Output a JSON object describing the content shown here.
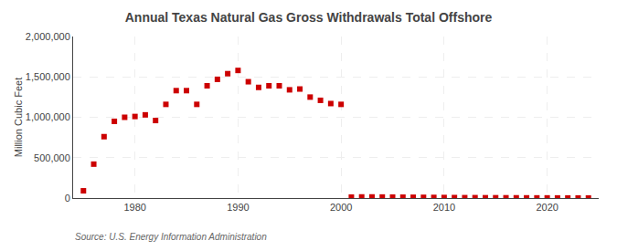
{
  "chart_data": {
    "type": "scatter",
    "title": "Annual Texas Natural Gas Gross Withdrawals Total Offshore",
    "ylabel": "Million Cubic Feet",
    "annotations": [
      "Source: U.S. Energy Information Administration"
    ],
    "color": "#cc0000",
    "marker": "square",
    "grid": true,
    "x": [
      1975,
      1976,
      1977,
      1978,
      1979,
      1980,
      1981,
      1982,
      1983,
      1984,
      1985,
      1986,
      1987,
      1988,
      1989,
      1990,
      1991,
      1992,
      1993,
      1994,
      1995,
      1996,
      1997,
      1998,
      1999,
      2000,
      2001,
      2002,
      2003,
      2004,
      2005,
      2006,
      2007,
      2008,
      2009,
      2010,
      2011,
      2012,
      2013,
      2014,
      2015,
      2016,
      2017,
      2018,
      2019,
      2020,
      2021,
      2022,
      2023,
      2024
    ],
    "values": [
      90000,
      420000,
      760000,
      950000,
      1000000,
      1010000,
      1030000,
      960000,
      1160000,
      1330000,
      1330000,
      1160000,
      1390000,
      1470000,
      1540000,
      1580000,
      1440000,
      1370000,
      1390000,
      1390000,
      1340000,
      1350000,
      1250000,
      1210000,
      1170000,
      1160000,
      12000,
      14000,
      14000,
      13000,
      12000,
      11000,
      10000,
      9000,
      8000,
      7000,
      6000,
      5000,
      5000,
      4000,
      4000,
      3500,
      3000,
      2500,
      2000,
      2000,
      1500,
      1200,
      1000,
      800
    ],
    "xlim": [
      1974,
      2025
    ],
    "xticks": [
      1980,
      1990,
      2000,
      2010,
      2020
    ],
    "ylim": [
      0,
      2000000
    ],
    "yticks": [
      0,
      {
        "value": 500000,
        "label": "500,000"
      },
      {
        "value": 1000000,
        "label": "1,000,000"
      },
      {
        "value": 1500000,
        "label": "1,500,000"
      },
      {
        "value": 2000000,
        "label": "2,000,000"
      }
    ]
  }
}
